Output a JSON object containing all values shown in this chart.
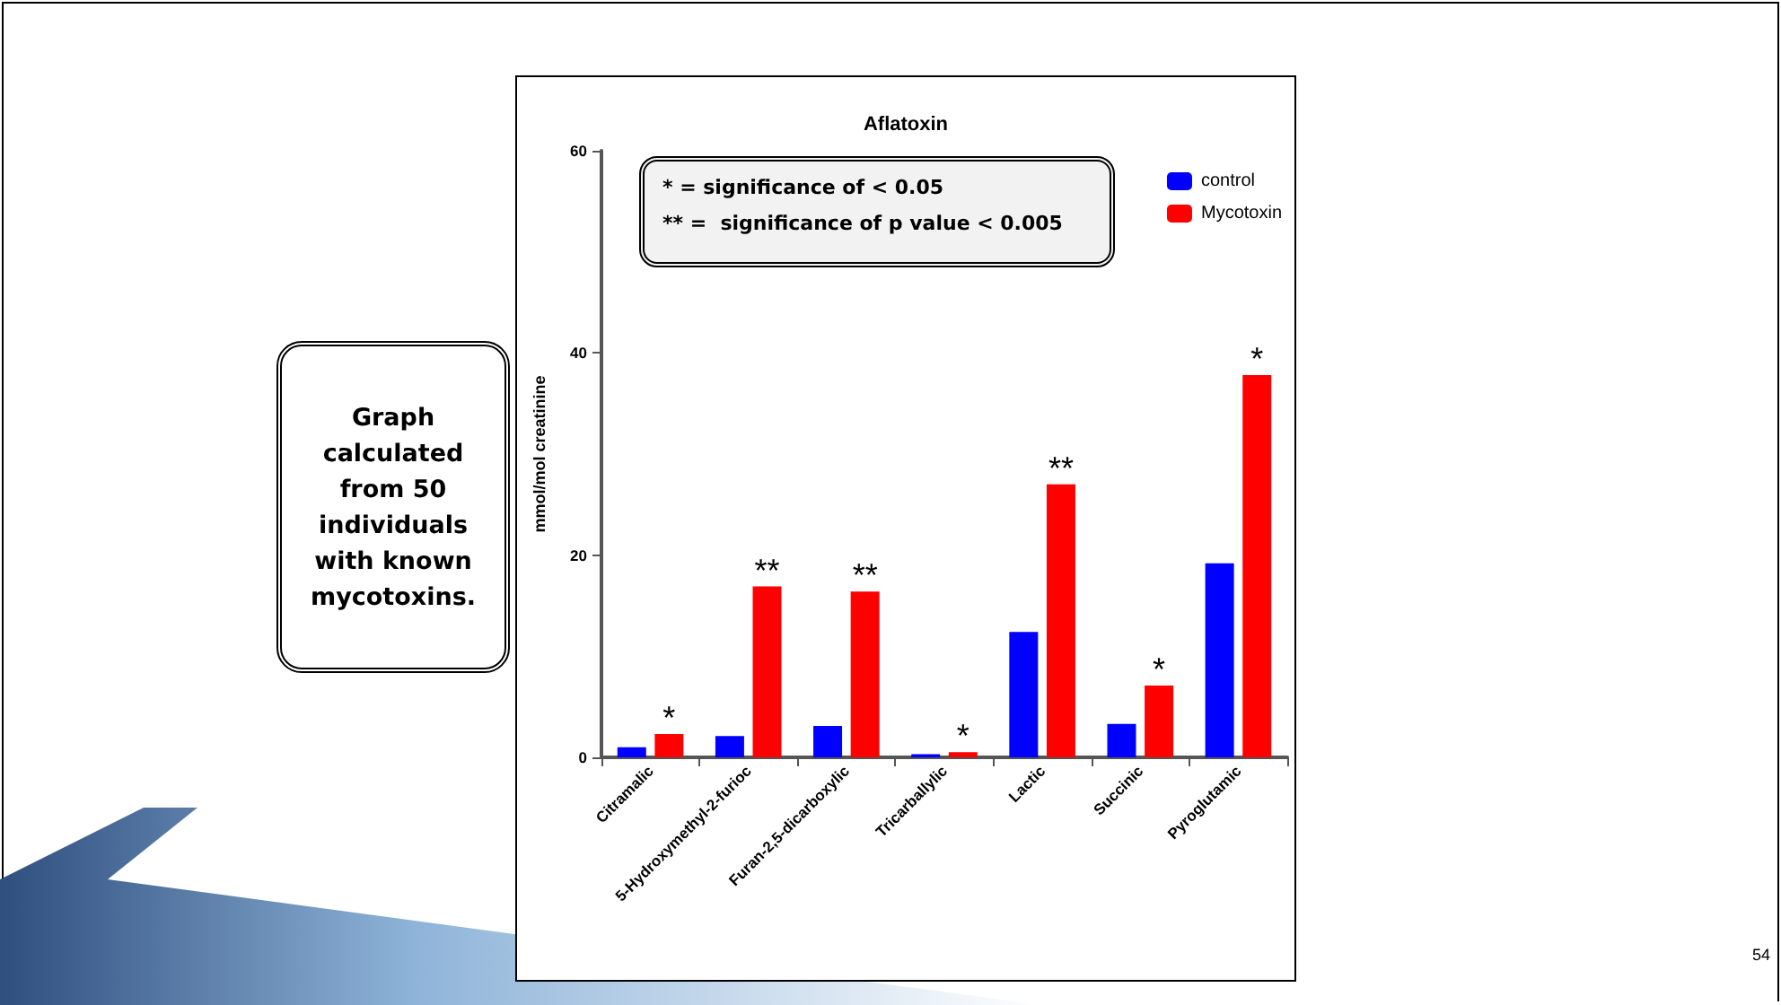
{
  "chart_data": {
    "type": "bar",
    "title": "Aflatoxin",
    "ylabel": "mmol/mol creatinine",
    "categories": [
      "Citramalic",
      "5-Hydroxymethyl-2-furioc",
      "Furan-2,5-dicarboxylic",
      "Tricarballylic",
      "Lactic",
      "Succinic",
      "Pyroglutamic"
    ],
    "series": [
      {
        "name": "control",
        "color": "#0000ff",
        "values": [
          1.0,
          2.1,
          3.1,
          0.3,
          12.4,
          3.3,
          19.2
        ]
      },
      {
        "name": "Mycotoxin",
        "color": "#ff0000",
        "values": [
          2.3,
          16.9,
          16.4,
          0.5,
          27.0,
          7.1,
          37.8
        ]
      }
    ],
    "ylim": [
      0,
      60
    ],
    "yticks": [
      0,
      20,
      40,
      60
    ],
    "grid": false,
    "legend": "top right",
    "annotations": [
      {
        "text": "*",
        "x": "Citramalic",
        "y": 2.3
      },
      {
        "text": "**",
        "x": "5-Hydroxymethyl-2-furioc",
        "y": 16.9
      },
      {
        "text": "**",
        "x": "Furan-2,5-dicarboxylic",
        "y": 16.4
      },
      {
        "text": "*",
        "x": "Tricarballylic",
        "y": 0.5
      },
      {
        "text": "**",
        "x": "Lactic",
        "y": 27.0
      },
      {
        "text": "*",
        "x": "Succinic",
        "y": 7.1
      },
      {
        "text": "*",
        "x": "Pyroglutamic",
        "y": 37.8
      },
      "* = significance of < 0.05\n** =  significance of p value < 0.005",
      "Graph calculated from 50 individuals with known mycotoxins.",
      "54"
    ]
  }
}
